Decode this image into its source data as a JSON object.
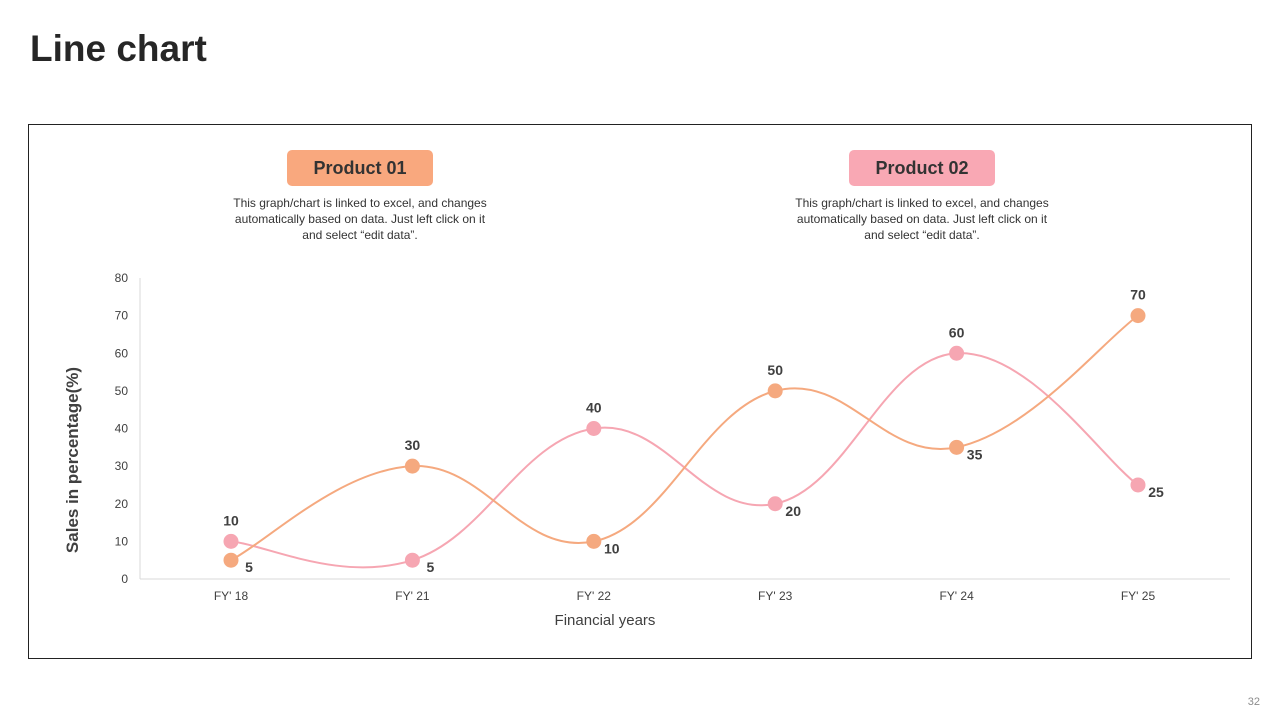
{
  "page": {
    "title": "Line chart",
    "page_number": "32"
  },
  "legend": [
    {
      "label": "Product 01",
      "color": "#f9a87e",
      "description": "This graph/chart is linked to excel, and changes automatically based on data. Just left click on it and select “edit data”."
    },
    {
      "label": "Product 02",
      "color": "#f9a8b4",
      "description": "This graph/chart is linked to excel, and changes automatically based on data. Just left click on it and select “edit data”."
    }
  ],
  "chart_data": {
    "type": "line",
    "categories": [
      "FY' 18",
      "FY' 21",
      "FY' 22",
      "FY' 23",
      "FY' 24",
      "FY' 25"
    ],
    "series": [
      {
        "name": "Product 01",
        "color": "#f5a97f",
        "values": [
          5,
          30,
          10,
          50,
          35,
          70
        ]
      },
      {
        "name": "Product 02",
        "color": "#f6a6b2",
        "values": [
          10,
          5,
          40,
          20,
          60,
          25
        ]
      }
    ],
    "xlabel": "Financial years",
    "ylabel": "Sales in percentage(%)",
    "ylim": [
      0,
      80
    ],
    "yticks": [
      0,
      10,
      20,
      30,
      40,
      50,
      60,
      70,
      80
    ],
    "grid": false,
    "smooth": true,
    "legend_position": "top"
  }
}
